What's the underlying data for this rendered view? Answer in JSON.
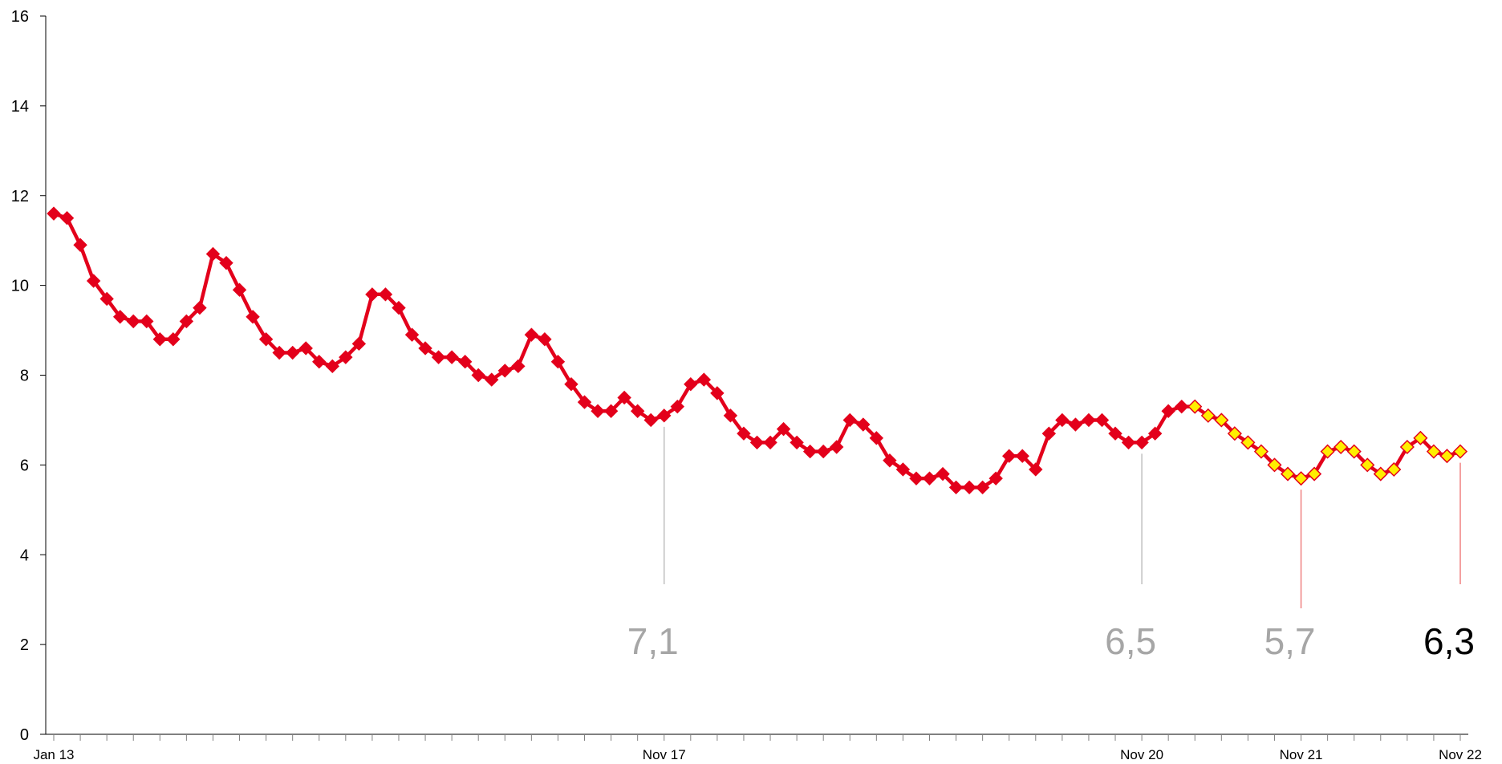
{
  "chart_data": {
    "type": "line",
    "xlabel": "",
    "ylabel": "",
    "ylim": [
      0,
      16
    ],
    "yticks": [
      0,
      2,
      4,
      6,
      8,
      10,
      12,
      14,
      16
    ],
    "x_tick_labels": [
      {
        "index": 0,
        "label": "Jan 13"
      },
      {
        "index": 46,
        "label": "Nov 17"
      },
      {
        "index": 82,
        "label": "Nov 20"
      },
      {
        "index": 94,
        "label": "Nov 21"
      },
      {
        "index": 106,
        "label": "Nov 22"
      }
    ],
    "grid": false,
    "legend": "none",
    "colors": {
      "line": "#e3001b",
      "marker_actual": "#e3001b",
      "marker_forecast_fill": "#ffee00",
      "marker_forecast_stroke": "#e3001b",
      "callout_past": "#a6a6a6",
      "callout_current": "#000000",
      "leader_past": "#c0c0c0",
      "leader_forecast": "#f08080"
    },
    "series": [
      {
        "values": [
          11.6,
          11.5,
          10.9,
          10.1,
          9.7,
          9.3,
          9.2,
          9.2,
          8.8,
          8.8,
          9.2,
          9.5,
          10.7,
          10.5,
          9.9,
          9.3,
          8.8,
          8.5,
          8.5,
          8.6,
          8.3,
          8.2,
          8.4,
          8.7,
          9.8,
          9.8,
          9.5,
          8.9,
          8.6,
          8.4,
          8.4,
          8.3,
          8.0,
          7.9,
          8.1,
          8.2,
          8.9,
          8.8,
          8.3,
          7.8,
          7.4,
          7.2,
          7.2,
          7.5,
          7.2,
          7.0,
          7.1,
          7.3,
          7.8,
          7.9,
          7.6,
          7.1,
          6.7,
          6.5,
          6.5,
          6.8,
          6.5,
          6.3,
          6.3,
          6.4,
          7.0,
          6.9,
          6.6,
          6.1,
          5.9,
          5.7,
          5.7,
          5.8,
          5.5,
          5.5,
          5.5,
          5.7,
          6.2,
          6.2,
          5.9,
          6.7,
          7.0,
          6.9,
          7.0,
          7.0,
          6.7,
          6.5,
          6.5,
          6.7,
          7.2,
          7.3,
          7.3,
          7.1,
          7.0,
          6.7,
          6.5,
          6.3,
          6.0,
          5.8,
          5.7,
          5.8,
          6.3,
          6.4,
          6.3,
          6.0,
          5.8,
          5.9,
          6.4,
          6.6,
          6.3,
          6.2,
          6.3
        ],
        "forecast_start_index": 86
      }
    ],
    "annotations": [
      {
        "index": 46,
        "text": "7,1",
        "style": "past"
      },
      {
        "index": 82,
        "text": "6,5",
        "style": "past"
      },
      {
        "index": 94,
        "text": "5,7",
        "style": "forecast"
      },
      {
        "index": 106,
        "text": "6,3",
        "style": "current"
      }
    ]
  }
}
